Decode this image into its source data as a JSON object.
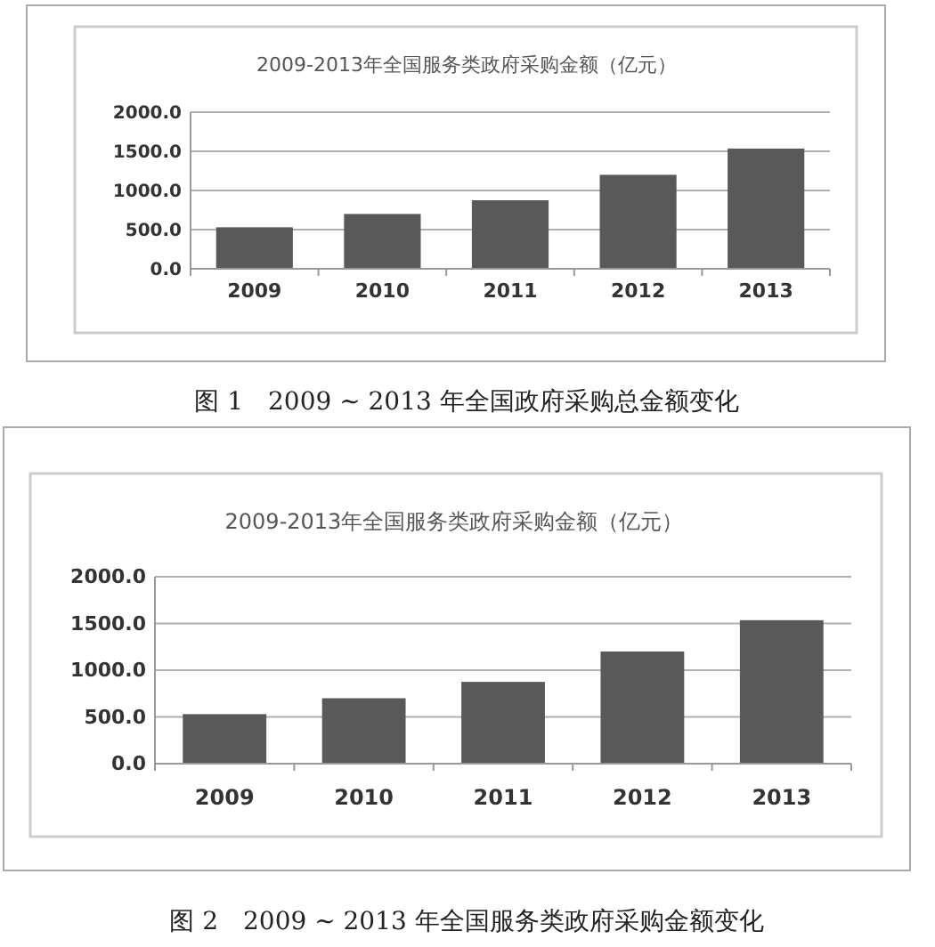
{
  "chart_data": [
    {
      "type": "bar",
      "title": "2009-2013年全国服务类政府采购金额（亿元）",
      "categories": [
        "2009",
        "2010",
        "2011",
        "2012",
        "2013"
      ],
      "values": [
        530,
        700,
        875,
        1200,
        1535
      ],
      "color": "#595959",
      "ylim": [
        0,
        2000
      ],
      "yticks": [
        {
          "value": 0,
          "label": "0.0"
        },
        {
          "value": 500,
          "label": "500.0"
        },
        {
          "value": 1000,
          "label": "1000.0"
        },
        {
          "value": 1500,
          "label": "1500.0"
        },
        {
          "value": 2000,
          "label": "2000.0"
        }
      ],
      "grid": "y",
      "annotations": [
        "图 1　2009 ~ 2013 年全国政府采购总金额变化"
      ]
    },
    {
      "type": "bar",
      "title": "2009-2013年全国服务类政府采购金额（亿元）",
      "categories": [
        "2009",
        "2010",
        "2011",
        "2012",
        "2013"
      ],
      "values": [
        530,
        700,
        875,
        1200,
        1535
      ],
      "color": "#595959",
      "ylim": [
        0,
        2000
      ],
      "yticks": [
        {
          "value": 0,
          "label": "0.0"
        },
        {
          "value": 500,
          "label": "500.0"
        },
        {
          "value": 1000,
          "label": "1000.0"
        },
        {
          "value": 1500,
          "label": "1500.0"
        },
        {
          "value": 2000,
          "label": "2000.0"
        }
      ],
      "grid": "y",
      "annotations": [
        "图 2　2009 ~ 2013 年全国服务类政府采购金额变化"
      ]
    }
  ]
}
